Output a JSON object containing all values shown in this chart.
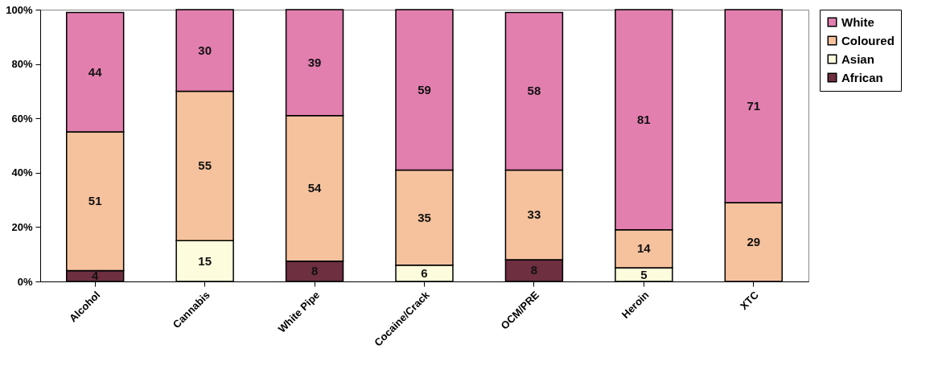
{
  "chart_data": {
    "type": "bar",
    "stacked": true,
    "categories": [
      "Alcohol",
      "Cannabis",
      "White Pipe",
      "Cocaine/Crack",
      "OCM/PRE",
      "Heroin",
      "XTC"
    ],
    "series": [
      {
        "name": "African",
        "color": "#6e2f40",
        "values": [
          4,
          0,
          7.5,
          0,
          8,
          0,
          0
        ],
        "value_labels": [
          "4",
          null,
          "8",
          null,
          "8",
          null,
          null
        ]
      },
      {
        "name": "Asian",
        "color": "#fdfcdc",
        "values": [
          0,
          15,
          0,
          6,
          0,
          5,
          0
        ],
        "value_labels": [
          null,
          "15",
          null,
          "6",
          null,
          "5",
          null
        ]
      },
      {
        "name": "Coloured",
        "color": "#f6c29d",
        "values": [
          51,
          55,
          53.5,
          35,
          33,
          14,
          29
        ],
        "value_labels": [
          "51",
          "55",
          "54",
          "35",
          "33",
          "14",
          "29"
        ]
      },
      {
        "name": "White",
        "color": "#e27fae",
        "values": [
          44,
          30,
          39,
          59,
          58,
          81,
          71
        ],
        "value_labels": [
          "44",
          "30",
          "39",
          "59",
          "58",
          "81",
          "71"
        ]
      }
    ],
    "ylim": [
      0,
      100
    ],
    "yticks": [
      {
        "value": 0,
        "label": "0%"
      },
      {
        "value": 20,
        "label": "20%"
      },
      {
        "value": 40,
        "label": "40%"
      },
      {
        "value": 60,
        "label": "60%"
      },
      {
        "value": 80,
        "label": "80%"
      },
      {
        "value": 100,
        "label": "100%"
      }
    ],
    "grid": false,
    "legend": "right"
  }
}
